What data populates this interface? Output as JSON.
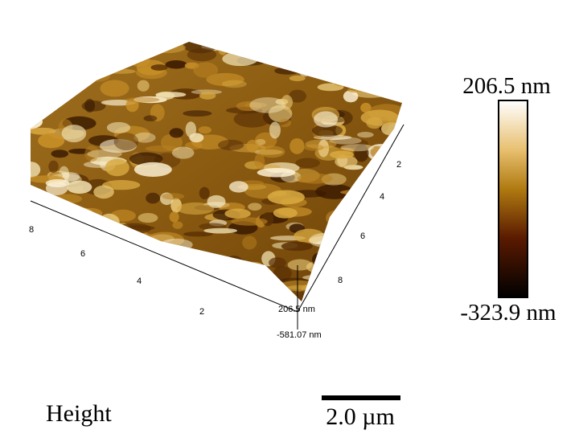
{
  "colorbar": {
    "max_label": "206.5 nm",
    "min_label": "-323.9 nm"
  },
  "surface": {
    "x_ticks": [
      "2",
      "4",
      "6",
      "8"
    ],
    "y_ticks": [
      "2",
      "4",
      "6",
      "8"
    ],
    "z_max_label": "206.5 nm",
    "z_min_label": "-581.07 nm"
  },
  "channel": "Height",
  "scale_bar": "2.0 µm"
}
